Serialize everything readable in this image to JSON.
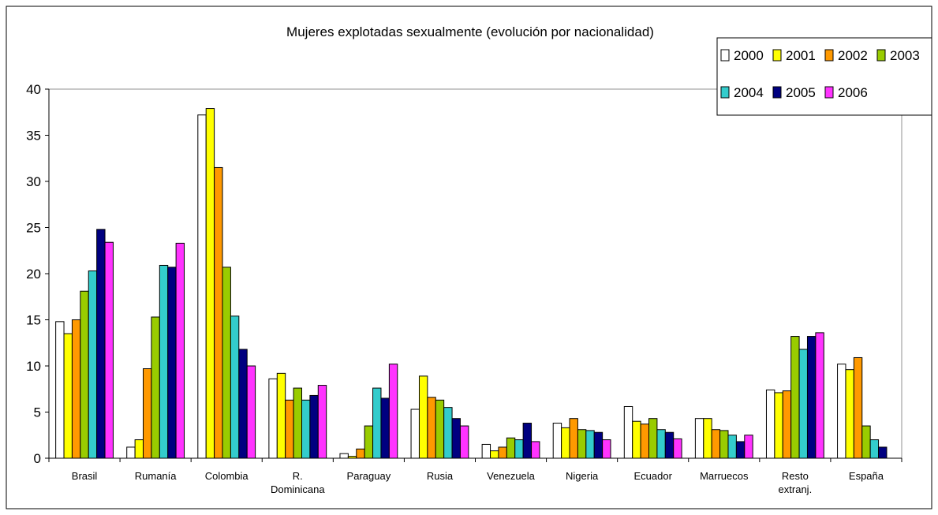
{
  "chart_data": {
    "type": "bar",
    "title": "Mujeres explotadas sexualmente (evolución por nacionalidad)",
    "xlabel": "",
    "ylabel": "",
    "ylim": [
      0,
      40
    ],
    "yticks": [
      "0",
      "5",
      "10",
      "15",
      "20",
      "25",
      "30",
      "35",
      "40"
    ],
    "grid": false,
    "legend_position": "top-right",
    "categories": [
      [
        "Brasil"
      ],
      [
        "Rumanía"
      ],
      [
        "Colombia"
      ],
      [
        "R.",
        "Dominicana"
      ],
      [
        "Paraguay"
      ],
      [
        "Rusia"
      ],
      [
        "Venezuela"
      ],
      [
        "Nigeria"
      ],
      [
        "Ecuador"
      ],
      [
        "Marruecos"
      ],
      [
        "Resto",
        "extranj."
      ],
      [
        "España"
      ]
    ],
    "series": [
      {
        "name": "2000",
        "color": "#ffffff",
        "values": [
          14.8,
          1.2,
          37.2,
          8.6,
          0.5,
          5.3,
          1.5,
          3.8,
          5.6,
          4.3,
          7.4,
          10.2
        ]
      },
      {
        "name": "2001",
        "color": "#ffff00",
        "values": [
          13.5,
          2.0,
          37.9,
          9.2,
          0.2,
          8.9,
          0.8,
          3.3,
          4.0,
          4.3,
          7.1,
          9.6
        ]
      },
      {
        "name": "2002",
        "color": "#ff9900",
        "values": [
          15.0,
          9.7,
          31.5,
          6.3,
          1.0,
          6.6,
          1.2,
          4.3,
          3.7,
          3.1,
          7.3,
          10.9
        ]
      },
      {
        "name": "2003",
        "color": "#99cc00",
        "values": [
          18.1,
          15.3,
          20.7,
          7.6,
          3.5,
          6.3,
          2.2,
          3.1,
          4.3,
          3.0,
          13.2,
          3.5
        ]
      },
      {
        "name": "2004",
        "color": "#33cccc",
        "values": [
          20.3,
          20.9,
          15.4,
          6.3,
          7.6,
          5.5,
          2.0,
          3.0,
          3.1,
          2.5,
          11.8,
          2.0
        ]
      },
      {
        "name": "2005",
        "color": "#000080",
        "values": [
          24.8,
          20.7,
          11.8,
          6.8,
          6.5,
          4.3,
          3.8,
          2.8,
          2.8,
          1.8,
          13.2,
          1.2
        ]
      },
      {
        "name": "2006",
        "color": "#ff33ff",
        "values": [
          23.4,
          23.3,
          10.0,
          7.9,
          10.2,
          3.5,
          1.8,
          2.0,
          2.1,
          2.5,
          13.6,
          0.0
        ]
      }
    ]
  }
}
